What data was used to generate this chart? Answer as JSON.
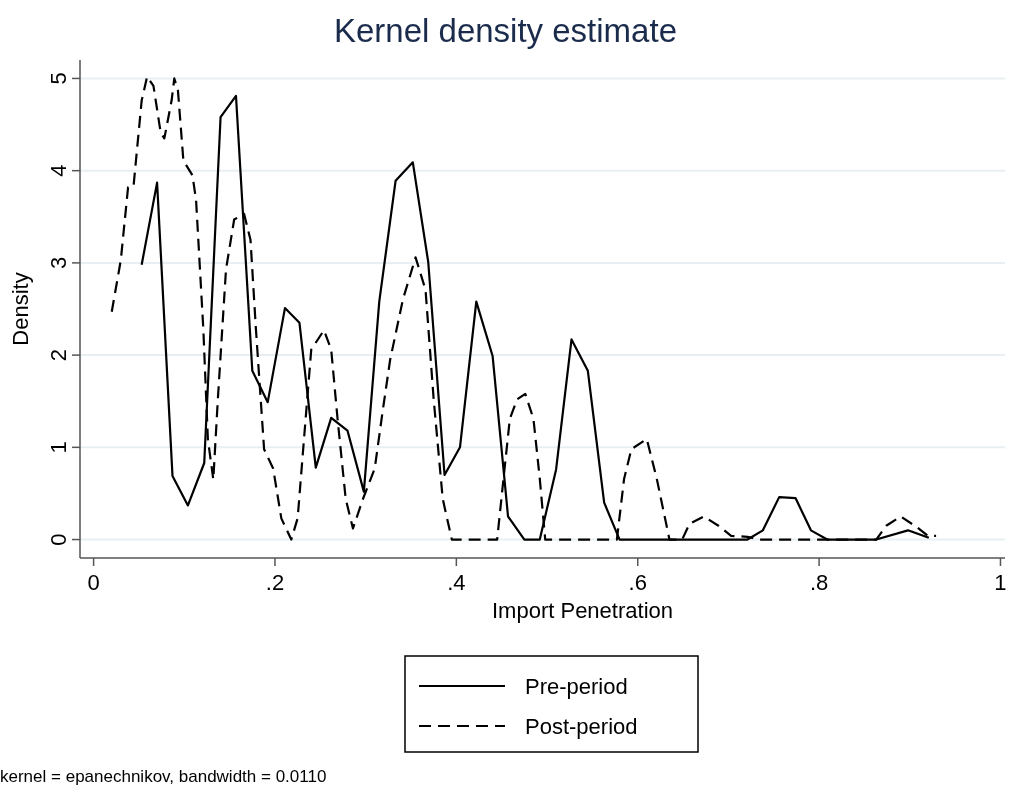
{
  "chart_data": {
    "type": "line",
    "title": "Kernel density estimate",
    "xlabel": "Import Penetration",
    "ylabel": "Density",
    "annotations": [
      "kernel = epanechnikov, bandwidth = 0.0110"
    ],
    "xlim": [
      -0.015,
      1.005
    ],
    "xticks": [
      {
        "value": 0,
        "label": "0"
      },
      {
        "value": 0.2,
        "label": ".2"
      },
      {
        "value": 0.4,
        "label": ".4"
      },
      {
        "value": 0.6,
        "label": ".6"
      },
      {
        "value": 0.8,
        "label": ".8"
      },
      {
        "value": 1,
        "label": "1"
      }
    ],
    "ylim": [
      -0.2,
      5.2
    ],
    "yticks": [
      0,
      1,
      2,
      3,
      4,
      5
    ],
    "grid": "y",
    "legend": "bottom",
    "series": [
      {
        "name": "Pre-period",
        "color": "#000000",
        "line_style": "solid",
        "x": [
          0.053,
          0.07,
          0.087,
          0.104,
          0.122,
          0.14,
          0.157,
          0.175,
          0.192,
          0.211,
          0.227,
          0.245,
          0.262,
          0.28,
          0.298,
          0.315,
          0.333,
          0.352,
          0.369,
          0.387,
          0.404,
          0.422,
          0.44,
          0.457,
          0.475,
          0.492,
          0.51,
          0.527,
          0.545,
          0.563,
          0.58,
          0.721,
          0.738,
          0.756,
          0.774,
          0.791,
          0.809,
          0.863,
          0.898,
          0.921
        ],
        "values": [
          2.98,
          3.87,
          0.69,
          0.37,
          0.83,
          4.58,
          4.81,
          1.83,
          1.49,
          2.51,
          2.35,
          0.78,
          1.32,
          1.18,
          0.52,
          2.58,
          3.89,
          4.09,
          3.01,
          0.7,
          1.0,
          2.58,
          1.99,
          0.25,
          0,
          0,
          0.76,
          2.17,
          1.83,
          0.4,
          0,
          0,
          0.1,
          0.46,
          0.45,
          0.1,
          0,
          0,
          0.1,
          0.02
        ]
      },
      {
        "name": "Post-period",
        "color": "#000000",
        "line_style": "dashed",
        "x": [
          0.02,
          0.03,
          0.038,
          0.044,
          0.053,
          0.059,
          0.066,
          0.074,
          0.078,
          0.086,
          0.089,
          0.093,
          0.099,
          0.109,
          0.113,
          0.121,
          0.126,
          0.132,
          0.137,
          0.146,
          0.155,
          0.166,
          0.173,
          0.179,
          0.188,
          0.198,
          0.207,
          0.218,
          0.225,
          0.232,
          0.24,
          0.254,
          0.262,
          0.269,
          0.278,
          0.286,
          0.297,
          0.31,
          0.319,
          0.327,
          0.341,
          0.355,
          0.366,
          0.375,
          0.385,
          0.395,
          0.445,
          0.452,
          0.459,
          0.467,
          0.476,
          0.485,
          0.492,
          0.498,
          0.577,
          0.585,
          0.593,
          0.61,
          0.621,
          0.635,
          0.649,
          0.657,
          0.673,
          0.689,
          0.703,
          0.721,
          0.734,
          0.808,
          0.863,
          0.874,
          0.89,
          0.907,
          0.92,
          0.929
        ],
        "values": [
          2.47,
          3.03,
          3.82,
          3.83,
          4.76,
          5.02,
          4.92,
          4.41,
          4.35,
          4.76,
          5.0,
          4.87,
          4.11,
          3.95,
          3.68,
          2.28,
          1.09,
          0.65,
          1.52,
          2.93,
          3.47,
          3.53,
          3.25,
          2.28,
          0.98,
          0.77,
          0.23,
          0,
          0.23,
          1.09,
          2.06,
          2.27,
          2.06,
          1.31,
          0.44,
          0.12,
          0.44,
          0.77,
          1.41,
          1.95,
          2.6,
          3.06,
          2.71,
          1.52,
          0.44,
          0,
          0,
          0.66,
          1.31,
          1.52,
          1.58,
          1.31,
          0.66,
          0,
          0,
          0.66,
          0.98,
          1.09,
          0.66,
          0,
          0,
          0.17,
          0.25,
          0.15,
          0.04,
          0.03,
          0,
          0,
          0,
          0.15,
          0.25,
          0.14,
          0.04,
          0.04
        ]
      }
    ]
  }
}
